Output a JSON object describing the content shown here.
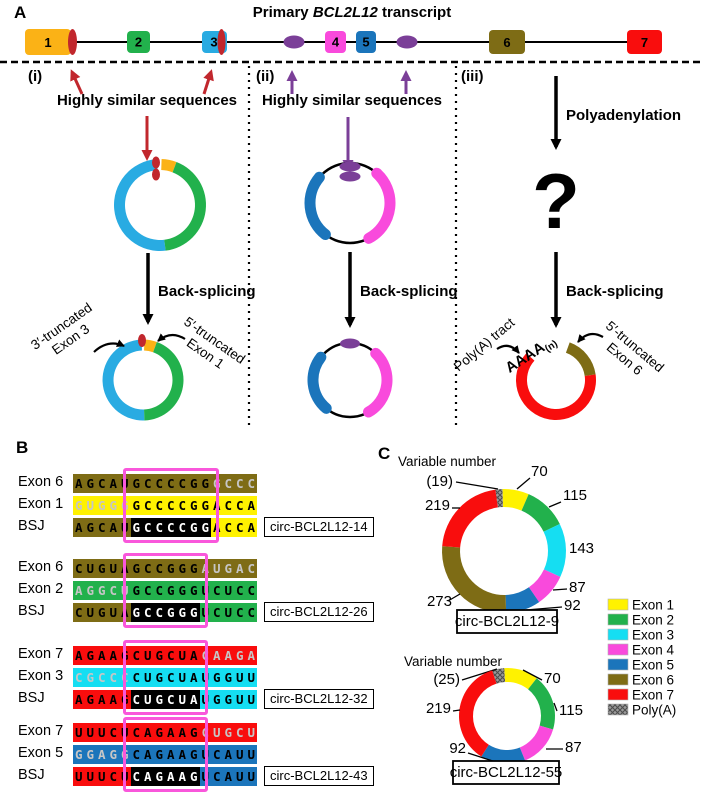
{
  "colors": {
    "exon1_panelA": "#FBB216",
    "exon1": "#FFF200",
    "exon2": "#22B14C",
    "exon3_panelA": "#29ABE2",
    "exon3": "#15DEF2",
    "exon4": "#F94ADC",
    "exon5": "#1B75BB",
    "exon6": "#7E6C15",
    "exon7": "#F90D0D",
    "polya": "#8C8C8C",
    "dark_red": "#C1272D",
    "purple": "#7B3F98",
    "highlight_outline": "#F957DB",
    "faded_letter": "#C6C6C6"
  },
  "panelA": {
    "label": "A",
    "title": {
      "pre": "Primary ",
      "gene": "BCL2L12",
      "post": " transcript"
    },
    "exons": [
      "1",
      "2",
      "3",
      "4",
      "5",
      "6",
      "7"
    ],
    "sections": {
      "i": {
        "label": "(i)",
        "similar": "Highly similar sequences",
        "backsplicing": "Back-splicing",
        "left_line1": "3′-truncated",
        "left_line2": "Exon 3",
        "right_line1": "5′-truncated",
        "right_line2": "Exon 1"
      },
      "ii": {
        "label": "(ii)",
        "similar": "Highly similar sequences",
        "backsplicing": "Back-splicing"
      },
      "iii": {
        "label": "(iii)",
        "polyadenylation": "Polyadenylation",
        "question": "?",
        "backsplicing": "Back-splicing",
        "polya_tract": "Poly(A) tract",
        "aaaa": "AAAA",
        "aaaa_sub": "(n)",
        "right_line1": "5′-truncated",
        "right_line2": "Exon 6"
      }
    }
  },
  "panelB": {
    "label": "B",
    "blocks": [
      {
        "name": "circ-BCL2L12-14",
        "rows": [
          {
            "label": "Exon 6",
            "cells": [
              [
                "AGCAU",
                "exon6",
                "n"
              ],
              [
                "GCCCCGG",
                "exon6",
                "n"
              ],
              [
                "GCCC",
                "exon6",
                "f"
              ]
            ]
          },
          {
            "label": "Exon 1",
            "cells": [
              [
                "GUGGG",
                "exon1",
                "f"
              ],
              [
                "GCCCCGG",
                "exon1",
                "n"
              ],
              [
                "ACCA",
                "exon1",
                "n"
              ]
            ]
          },
          {
            "label": "BSJ",
            "cells": [
              [
                "AGCAU",
                "exon6",
                "n"
              ],
              [
                "GCCCCGG",
                "bsj",
                "n"
              ],
              [
                "ACCA",
                "exon1",
                "n"
              ]
            ]
          }
        ]
      },
      {
        "name": "circ-BCL2L12-26",
        "rows": [
          {
            "label": "Exon 6",
            "cells": [
              [
                "CUGUA",
                "exon6",
                "n"
              ],
              [
                "GCCGGG",
                "exon6",
                "n"
              ],
              [
                "AUGAC",
                "exon6",
                "f"
              ]
            ]
          },
          {
            "label": "Exon 2",
            "cells": [
              [
                "AGGCU",
                "exon2",
                "f"
              ],
              [
                "GCCGGG",
                "exon2",
                "n"
              ],
              [
                "UCUCC",
                "exon2",
                "n"
              ]
            ]
          },
          {
            "label": "BSJ",
            "cells": [
              [
                "CUGUA",
                "exon6",
                "n"
              ],
              [
                "GCCGGG",
                "bsj",
                "n"
              ],
              [
                "UCUCC",
                "exon2",
                "n"
              ]
            ]
          }
        ]
      },
      {
        "name": "circ-BCL2L12-32",
        "rows": [
          {
            "label": "Exon 7",
            "cells": [
              [
                "AGAAG",
                "exon7",
                "n"
              ],
              [
                "CUGCUA",
                "exon7",
                "n"
              ],
              [
                "CAAGA",
                "exon7",
                "f"
              ]
            ]
          },
          {
            "label": "Exon 3",
            "cells": [
              [
                "CGCCC",
                "exon3",
                "f"
              ],
              [
                "CUGCUA",
                "exon3",
                "n"
              ],
              [
                "UGGUU",
                "exon3",
                "n"
              ]
            ]
          },
          {
            "label": "BSJ",
            "cells": [
              [
                "AGAAG",
                "exon7",
                "n"
              ],
              [
                "CUGCUA",
                "bsj",
                "n"
              ],
              [
                "UGGUU",
                "exon3",
                "n"
              ]
            ]
          }
        ]
      },
      {
        "name": "circ-BCL2L12-43",
        "rows": [
          {
            "label": "Exon 7",
            "cells": [
              [
                "UUUCU",
                "exon7",
                "n"
              ],
              [
                "CAGAAG",
                "exon7",
                "n"
              ],
              [
                "CUGCU",
                "exon7",
                "f"
              ]
            ]
          },
          {
            "label": "Exon 5",
            "cells": [
              [
                "GGAGG",
                "exon5",
                "f"
              ],
              [
                "CAGAAG",
                "exon5",
                "n"
              ],
              [
                "UCAUU",
                "exon5",
                "n"
              ]
            ]
          },
          {
            "label": "BSJ",
            "cells": [
              [
                "UUUCU",
                "exon7",
                "n"
              ],
              [
                "CAGAAG",
                "bsj",
                "n"
              ],
              [
                "UCAUU",
                "exon5",
                "n"
              ]
            ]
          }
        ]
      }
    ]
  },
  "panelC": {
    "label": "C"
  },
  "chart_data": [
    {
      "type": "donut",
      "name": "circ-BCL2L12-9",
      "annotation": "Variable number",
      "segments": [
        {
          "exon": "Poly(A)",
          "value": 19,
          "display": "(19)",
          "color": "polya"
        },
        {
          "exon": "Exon 1",
          "value": 70,
          "display": "70",
          "color": "exon1"
        },
        {
          "exon": "Exon 2",
          "value": 115,
          "display": "115",
          "color": "exon2"
        },
        {
          "exon": "Exon 3",
          "value": 143,
          "display": "143",
          "color": "exon3"
        },
        {
          "exon": "Exon 4",
          "value": 87,
          "display": "87",
          "color": "exon4"
        },
        {
          "exon": "Exon 5",
          "value": 92,
          "display": "92",
          "color": "exon5"
        },
        {
          "exon": "Exon 6",
          "value": 273,
          "display": "273",
          "color": "exon6"
        },
        {
          "exon": "Exon 7",
          "value": 219,
          "display": "219",
          "color": "exon7"
        }
      ]
    },
    {
      "type": "donut",
      "name": "circ-BCL2L12-55",
      "annotation": "Variable number",
      "segments": [
        {
          "exon": "Poly(A)",
          "value": 25,
          "display": "(25)",
          "color": "polya"
        },
        {
          "exon": "Exon 1",
          "value": 70,
          "display": "70",
          "color": "exon1"
        },
        {
          "exon": "Exon 2",
          "value": 115,
          "display": "115",
          "color": "exon2"
        },
        {
          "exon": "Exon 4",
          "value": 87,
          "display": "87",
          "color": "exon4"
        },
        {
          "exon": "Exon 5",
          "value": 92,
          "display": "92",
          "color": "exon5"
        },
        {
          "exon": "Exon 7",
          "value": 219,
          "display": "219",
          "color": "exon7"
        }
      ]
    }
  ],
  "legend": {
    "items": [
      {
        "label": "Exon 1",
        "color": "exon1"
      },
      {
        "label": "Exon 2",
        "color": "exon2"
      },
      {
        "label": "Exon 3",
        "color": "exon3"
      },
      {
        "label": "Exon 4",
        "color": "exon4"
      },
      {
        "label": "Exon 5",
        "color": "exon5"
      },
      {
        "label": "Exon 6",
        "color": "exon6"
      },
      {
        "label": "Exon 7",
        "color": "exon7"
      },
      {
        "label": "Poly(A)",
        "color": "polya"
      }
    ]
  }
}
